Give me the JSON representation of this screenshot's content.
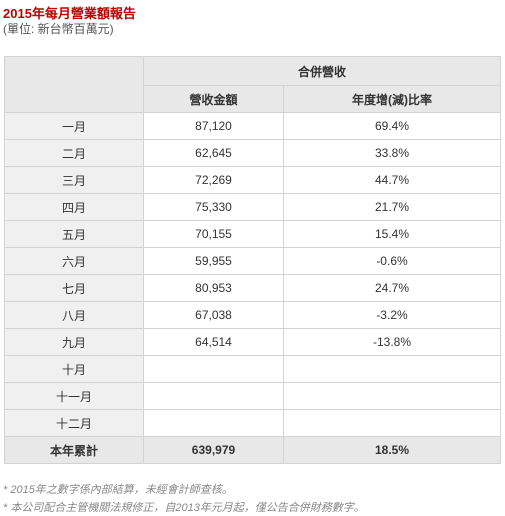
{
  "header": {
    "title": "2015年每月營業額報告",
    "unit": "(單位: 新台幣百萬元)"
  },
  "table": {
    "group_header": "合併營收",
    "col_revenue": "營收金額",
    "col_yoy": "年度增(減)比率",
    "rows": [
      {
        "month": "一月",
        "revenue": "87,120",
        "yoy": "69.4%"
      },
      {
        "month": "二月",
        "revenue": "62,645",
        "yoy": "33.8%"
      },
      {
        "month": "三月",
        "revenue": "72,269",
        "yoy": "44.7%"
      },
      {
        "month": "四月",
        "revenue": "75,330",
        "yoy": "21.7%"
      },
      {
        "month": "五月",
        "revenue": "70,155",
        "yoy": "15.4%"
      },
      {
        "month": "六月",
        "revenue": "59,955",
        "yoy": "-0.6%"
      },
      {
        "month": "七月",
        "revenue": "80,953",
        "yoy": "24.7%"
      },
      {
        "month": "八月",
        "revenue": "67,038",
        "yoy": "-3.2%"
      },
      {
        "month": "九月",
        "revenue": "64,514",
        "yoy": "-13.8%"
      },
      {
        "month": "十月",
        "revenue": "",
        "yoy": ""
      },
      {
        "month": "十一月",
        "revenue": "",
        "yoy": ""
      },
      {
        "month": "十二月",
        "revenue": "",
        "yoy": ""
      }
    ],
    "total": {
      "label": "本年累計",
      "revenue": "639,979",
      "yoy": "18.5%"
    }
  },
  "notes": [
    "* 2015年之數字係內部結算，未經會計師查核。",
    "* 本公司配合主管機關法規修正，自2013年元月起，僅公告合併財務數字。"
  ]
}
